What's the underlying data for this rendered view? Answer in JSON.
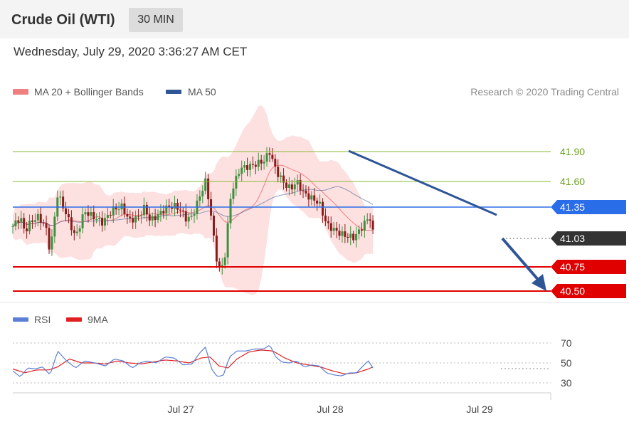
{
  "header": {
    "title": "Crude Oil (WTI)",
    "interval": "30 MIN"
  },
  "datetime": "Wednesday, July 29, 2020 3:36:27 AM CET",
  "legend": {
    "bollinger": "MA 20 + Bollinger Bands",
    "ma50": "MA 50",
    "rsi": "RSI",
    "rsi_ma": "9MA"
  },
  "credit": "Research © 2020 Trading Central",
  "colors": {
    "bollinger": "#f08080",
    "ma50": "#2e5596",
    "rsi": "#5b7fd6",
    "rsi_ma": "#e02020",
    "resistance": "#8ab833",
    "support": "#e00000",
    "current": "#333333",
    "ma50_level": "#2a6de8"
  },
  "chart_data": [
    {
      "type": "line",
      "title": "",
      "ylim": [
        40.44,
        42.0
      ],
      "x_ticks": [
        "Jul 27",
        "Jul 28",
        "Jul 29"
      ],
      "levels": [
        {
          "name": "resistance 2",
          "value": 41.9,
          "label": "41.90"
        },
        {
          "name": "resistance 1",
          "value": 41.6,
          "label": "41.60"
        },
        {
          "name": "ma50",
          "value": 41.35,
          "label": "41.35"
        },
        {
          "name": "current",
          "value": 41.03,
          "label": "41.03"
        },
        {
          "name": "support 1",
          "value": 40.75,
          "label": "40.75"
        },
        {
          "name": "support 2",
          "value": 40.5,
          "label": "40.50"
        }
      ],
      "trendline": [
        {
          "x": 0.0,
          "y": 41.92
        },
        {
          "x": 1.0,
          "y": 41.21
        }
      ],
      "forecast_arrow": [
        {
          "x": 0.0,
          "y": 41.03
        },
        {
          "x": 1.0,
          "y": 40.5
        }
      ],
      "price_series": [
        {
          "x": 0.0,
          "y": 41.1
        },
        {
          "x": 0.05,
          "y": 41.2
        },
        {
          "x": 0.08,
          "y": 41.04
        },
        {
          "x": 0.12,
          "y": 41.15
        },
        {
          "x": 0.17,
          "y": 41.2
        },
        {
          "x": 0.22,
          "y": 41.1
        },
        {
          "x": 0.25,
          "y": 40.82
        },
        {
          "x": 0.3,
          "y": 41.45
        },
        {
          "x": 0.36,
          "y": 41.22
        },
        {
          "x": 0.42,
          "y": 40.98
        },
        {
          "x": 0.48,
          "y": 41.26
        },
        {
          "x": 0.54,
          "y": 41.2
        },
        {
          "x": 0.6,
          "y": 41.14
        },
        {
          "x": 0.67,
          "y": 41.28
        },
        {
          "x": 0.73,
          "y": 41.31
        },
        {
          "x": 0.78,
          "y": 41.16
        },
        {
          "x": 0.84,
          "y": 41.2
        },
        {
          "x": 0.88,
          "y": 41.3
        },
        {
          "x": 0.92,
          "y": 41.16
        },
        {
          "x": 0.98,
          "y": 41.23
        },
        {
          "x": 1.03,
          "y": 41.3
        },
        {
          "x": 1.08,
          "y": 41.32
        },
        {
          "x": 1.12,
          "y": 41.28
        },
        {
          "x": 1.16,
          "y": 41.18
        },
        {
          "x": 1.2,
          "y": 41.2
        },
        {
          "x": 1.25,
          "y": 41.42
        },
        {
          "x": 1.29,
          "y": 41.58
        },
        {
          "x": 1.32,
          "y": 41.3
        },
        {
          "x": 1.36,
          "y": 40.78
        },
        {
          "x": 1.39,
          "y": 40.6
        },
        {
          "x": 1.42,
          "y": 40.8
        },
        {
          "x": 1.46,
          "y": 41.45
        },
        {
          "x": 1.52,
          "y": 41.72
        },
        {
          "x": 1.6,
          "y": 41.75
        },
        {
          "x": 1.68,
          "y": 41.8
        },
        {
          "x": 1.72,
          "y": 41.9
        },
        {
          "x": 1.76,
          "y": 41.7
        },
        {
          "x": 1.82,
          "y": 41.55
        },
        {
          "x": 1.86,
          "y": 41.5
        },
        {
          "x": 1.9,
          "y": 41.58
        },
        {
          "x": 1.95,
          "y": 41.45
        },
        {
          "x": 2.0,
          "y": 41.4
        },
        {
          "x": 2.05,
          "y": 41.35
        },
        {
          "x": 2.1,
          "y": 41.12
        },
        {
          "x": 2.16,
          "y": 41.05
        },
        {
          "x": 2.22,
          "y": 41.0
        },
        {
          "x": 2.28,
          "y": 40.98
        },
        {
          "x": 2.32,
          "y": 41.05
        },
        {
          "x": 2.36,
          "y": 41.15
        },
        {
          "x": 2.39,
          "y": 41.2
        },
        {
          "x": 2.41,
          "y": 41.03
        }
      ]
    },
    {
      "type": "line",
      "title": "",
      "ylim": [
        26,
        76
      ],
      "y_ticks": [
        70,
        50,
        30
      ],
      "x_ticks": [
        "Jul 27",
        "Jul 28",
        "Jul 29"
      ],
      "series": [
        {
          "name": "RSI",
          "points": [
            {
              "x": 0.0,
              "y": 42
            },
            {
              "x": 0.05,
              "y": 36
            },
            {
              "x": 0.1,
              "y": 45
            },
            {
              "x": 0.15,
              "y": 44
            },
            {
              "x": 0.2,
              "y": 46
            },
            {
              "x": 0.25,
              "y": 38
            },
            {
              "x": 0.3,
              "y": 62
            },
            {
              "x": 0.36,
              "y": 52
            },
            {
              "x": 0.42,
              "y": 45
            },
            {
              "x": 0.48,
              "y": 52
            },
            {
              "x": 0.55,
              "y": 50
            },
            {
              "x": 0.62,
              "y": 47
            },
            {
              "x": 0.68,
              "y": 54
            },
            {
              "x": 0.74,
              "y": 52
            },
            {
              "x": 0.8,
              "y": 45
            },
            {
              "x": 0.85,
              "y": 50
            },
            {
              "x": 0.9,
              "y": 52
            },
            {
              "x": 0.96,
              "y": 50
            },
            {
              "x": 1.02,
              "y": 56
            },
            {
              "x": 1.08,
              "y": 55
            },
            {
              "x": 1.14,
              "y": 48
            },
            {
              "x": 1.2,
              "y": 49
            },
            {
              "x": 1.25,
              "y": 60
            },
            {
              "x": 1.29,
              "y": 66
            },
            {
              "x": 1.33,
              "y": 44
            },
            {
              "x": 1.37,
              "y": 36
            },
            {
              "x": 1.41,
              "y": 38
            },
            {
              "x": 1.45,
              "y": 56
            },
            {
              "x": 1.5,
              "y": 62
            },
            {
              "x": 1.56,
              "y": 62
            },
            {
              "x": 1.62,
              "y": 64
            },
            {
              "x": 1.68,
              "y": 64
            },
            {
              "x": 1.72,
              "y": 68
            },
            {
              "x": 1.76,
              "y": 56
            },
            {
              "x": 1.8,
              "y": 51
            },
            {
              "x": 1.85,
              "y": 50
            },
            {
              "x": 1.9,
              "y": 52
            },
            {
              "x": 1.95,
              "y": 46
            },
            {
              "x": 2.0,
              "y": 48
            },
            {
              "x": 2.05,
              "y": 47
            },
            {
              "x": 2.1,
              "y": 40
            },
            {
              "x": 2.15,
              "y": 38
            },
            {
              "x": 2.2,
              "y": 37
            },
            {
              "x": 2.25,
              "y": 40
            },
            {
              "x": 2.3,
              "y": 40
            },
            {
              "x": 2.35,
              "y": 48
            },
            {
              "x": 2.38,
              "y": 52
            },
            {
              "x": 2.41,
              "y": 45
            }
          ]
        },
        {
          "name": "9MA",
          "points": [
            {
              "x": 0.0,
              "y": 44
            },
            {
              "x": 0.08,
              "y": 40
            },
            {
              "x": 0.16,
              "y": 43
            },
            {
              "x": 0.24,
              "y": 43
            },
            {
              "x": 0.3,
              "y": 46
            },
            {
              "x": 0.38,
              "y": 54
            },
            {
              "x": 0.46,
              "y": 50
            },
            {
              "x": 0.54,
              "y": 50
            },
            {
              "x": 0.62,
              "y": 49
            },
            {
              "x": 0.7,
              "y": 52
            },
            {
              "x": 0.78,
              "y": 50
            },
            {
              "x": 0.86,
              "y": 49
            },
            {
              "x": 0.94,
              "y": 51
            },
            {
              "x": 1.02,
              "y": 53
            },
            {
              "x": 1.1,
              "y": 52
            },
            {
              "x": 1.18,
              "y": 50
            },
            {
              "x": 1.26,
              "y": 55
            },
            {
              "x": 1.32,
              "y": 56
            },
            {
              "x": 1.38,
              "y": 47
            },
            {
              "x": 1.44,
              "y": 45
            },
            {
              "x": 1.5,
              "y": 54
            },
            {
              "x": 1.58,
              "y": 61
            },
            {
              "x": 1.66,
              "y": 63
            },
            {
              "x": 1.74,
              "y": 62
            },
            {
              "x": 1.82,
              "y": 55
            },
            {
              "x": 1.9,
              "y": 50
            },
            {
              "x": 1.98,
              "y": 48
            },
            {
              "x": 2.06,
              "y": 46
            },
            {
              "x": 2.14,
              "y": 42
            },
            {
              "x": 2.22,
              "y": 39
            },
            {
              "x": 2.3,
              "y": 40
            },
            {
              "x": 2.38,
              "y": 44
            },
            {
              "x": 2.41,
              "y": 46
            }
          ]
        }
      ]
    }
  ]
}
